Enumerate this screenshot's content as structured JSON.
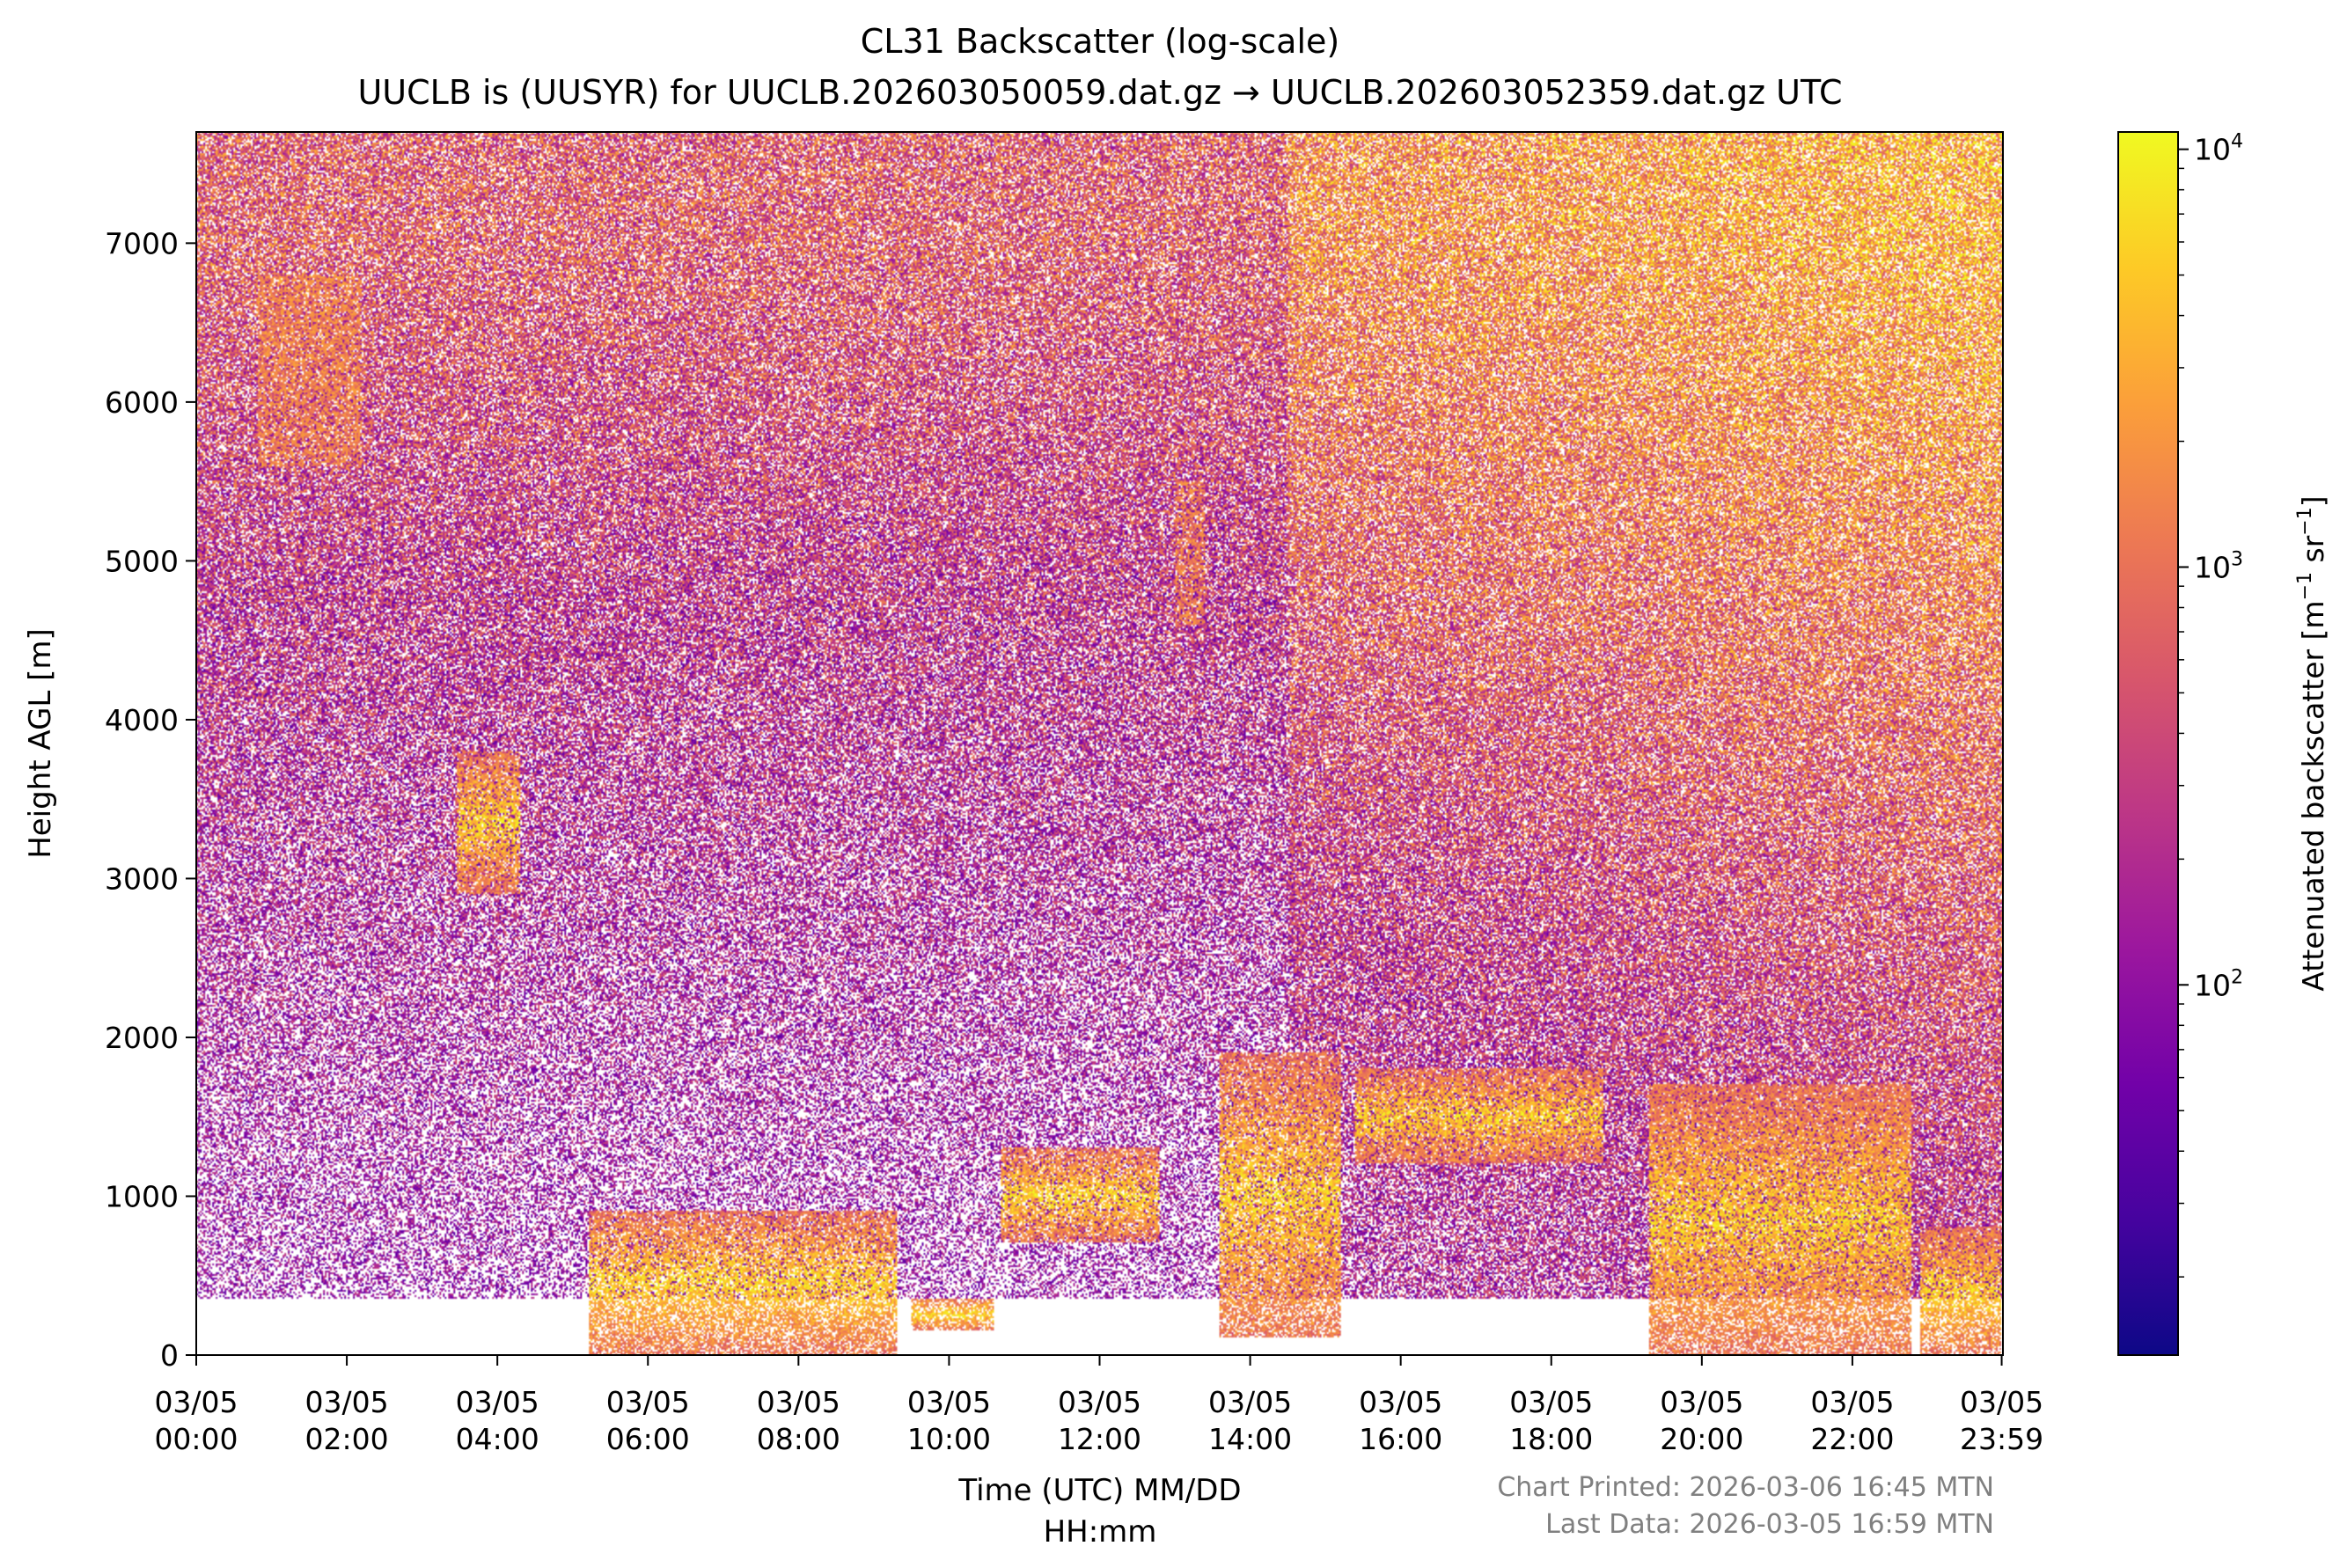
{
  "chart_data": {
    "type": "heatmap",
    "title": "CL31 Backscatter (log-scale)",
    "subtitle": "UUCLB is (UUSYR) for UUCLB.202603050059.dat.gz → UUCLB.202603052359.dat.gz UTC",
    "xlabel_line1": "Time (UTC) MM/DD",
    "xlabel_line2": "HH:mm",
    "ylabel": "Height AGL [m]",
    "x_range_hours": [
      0,
      24
    ],
    "ylim": [
      0,
      7700
    ],
    "x_ticks": [
      {
        "hour": 0,
        "date": "03/05",
        "time": "00:00"
      },
      {
        "hour": 2,
        "date": "03/05",
        "time": "02:00"
      },
      {
        "hour": 4,
        "date": "03/05",
        "time": "04:00"
      },
      {
        "hour": 6,
        "date": "03/05",
        "time": "06:00"
      },
      {
        "hour": 8,
        "date": "03/05",
        "time": "08:00"
      },
      {
        "hour": 10,
        "date": "03/05",
        "time": "10:00"
      },
      {
        "hour": 12,
        "date": "03/05",
        "time": "12:00"
      },
      {
        "hour": 14,
        "date": "03/05",
        "time": "14:00"
      },
      {
        "hour": 16,
        "date": "03/05",
        "time": "16:00"
      },
      {
        "hour": 18,
        "date": "03/05",
        "time": "18:00"
      },
      {
        "hour": 20,
        "date": "03/05",
        "time": "20:00"
      },
      {
        "hour": 22,
        "date": "03/05",
        "time": "22:00"
      },
      {
        "hour": 23.983,
        "date": "03/05",
        "time": "23:59"
      }
    ],
    "y_ticks": [
      0,
      1000,
      2000,
      3000,
      4000,
      5000,
      6000,
      7000
    ],
    "colorbar": {
      "label": "Attenuated backscatter [m",
      "label_exp1": "−1",
      "label_mid": " sr",
      "label_exp2": "−1",
      "label_end": "]",
      "scale": "log",
      "range": [
        13,
        11000
      ],
      "ticks": [
        {
          "value": 100,
          "base": "10",
          "exp": "2"
        },
        {
          "value": 1000,
          "base": "10",
          "exp": "3"
        },
        {
          "value": 10000,
          "base": "10",
          "exp": "4"
        }
      ],
      "colormap": "plasma",
      "stops": [
        "#0d0887",
        "#46039f",
        "#7201a8",
        "#9c179e",
        "#bd3786",
        "#d8576b",
        "#ed7953",
        "#fb9f3a",
        "#fdca26",
        "#f0f921"
      ]
    },
    "features": {
      "surface_layer_top_m": 350,
      "cloud_layers": [
        {
          "start_h": 3.45,
          "end_h": 4.3,
          "base_m": 2900,
          "top_m": 3800
        },
        {
          "start_h": 5.2,
          "end_h": 9.3,
          "base_m": 0,
          "top_m": 900
        },
        {
          "start_h": 9.5,
          "end_h": 10.6,
          "base_m": 150,
          "top_m": 350
        },
        {
          "start_h": 10.7,
          "end_h": 12.8,
          "base_m": 700,
          "top_m": 1300
        },
        {
          "start_h": 13.6,
          "end_h": 15.2,
          "base_m": 100,
          "top_m": 1900
        },
        {
          "start_h": 15.4,
          "end_h": 18.7,
          "base_m": 1200,
          "top_m": 1800
        },
        {
          "start_h": 19.3,
          "end_h": 22.8,
          "base_m": 0,
          "top_m": 1700
        },
        {
          "start_h": 22.9,
          "end_h": 23.98,
          "base_m": 0,
          "top_m": 800
        }
      ],
      "aloft_patches": [
        {
          "start_h": 0.8,
          "end_h": 2.2,
          "base_m": 5600,
          "top_m": 6800
        },
        {
          "start_h": 13.0,
          "end_h": 13.4,
          "base_m": 4600,
          "top_m": 5500
        }
      ]
    }
  },
  "footer": {
    "printed": "Chart Printed: 2026-03-06 16:45 MTN",
    "last_data": "Last Data: 2026-03-05 16:59 MTN"
  }
}
